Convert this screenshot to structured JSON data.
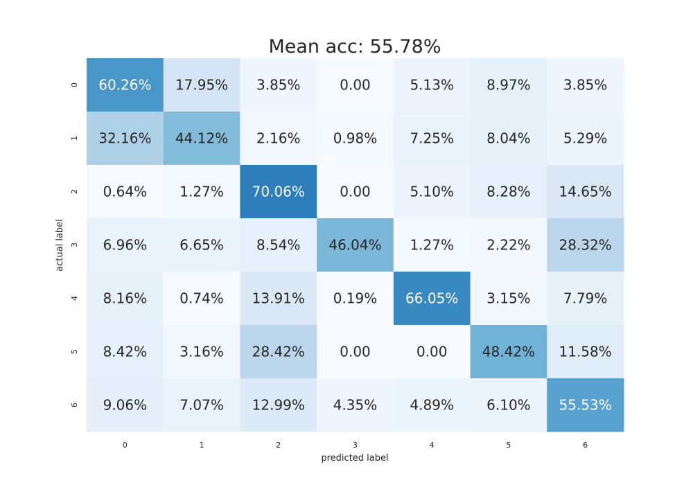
{
  "chart_data": {
    "type": "heatmap",
    "title": "Mean acc: 55.78%",
    "xlabel": "predicted label",
    "ylabel": "actual label",
    "x_categories": [
      "0",
      "1",
      "2",
      "3",
      "4",
      "5",
      "6"
    ],
    "y_categories": [
      "0",
      "1",
      "2",
      "3",
      "4",
      "5",
      "6"
    ],
    "values": [
      [
        60.26,
        17.95,
        3.85,
        0.0,
        5.13,
        8.97,
        3.85
      ],
      [
        32.16,
        44.12,
        2.16,
        0.98,
        7.25,
        8.04,
        5.29
      ],
      [
        0.64,
        1.27,
        70.06,
        0.0,
        5.1,
        8.28,
        14.65
      ],
      [
        6.96,
        6.65,
        8.54,
        46.04,
        1.27,
        2.22,
        28.32
      ],
      [
        8.16,
        0.74,
        13.91,
        0.19,
        66.05,
        3.15,
        7.79
      ],
      [
        8.42,
        3.16,
        28.42,
        0.0,
        0.0,
        48.42,
        11.58
      ],
      [
        9.06,
        7.07,
        12.99,
        4.35,
        4.89,
        6.1,
        55.53
      ]
    ],
    "cell_labels": [
      [
        "60.26%",
        "17.95%",
        "3.85%",
        "0.00",
        "5.13%",
        "8.97%",
        "3.85%"
      ],
      [
        "32.16%",
        "44.12%",
        "2.16%",
        "0.98%",
        "7.25%",
        "8.04%",
        "5.29%"
      ],
      [
        "0.64%",
        "1.27%",
        "70.06%",
        "0.00",
        "5.10%",
        "8.28%",
        "14.65%"
      ],
      [
        "6.96%",
        "6.65%",
        "8.54%",
        "46.04%",
        "1.27%",
        "2.22%",
        "28.32%"
      ],
      [
        "8.16%",
        "0.74%",
        "13.91%",
        "0.19%",
        "66.05%",
        "3.15%",
        "7.79%"
      ],
      [
        "8.42%",
        "3.16%",
        "28.42%",
        "0.00",
        "0.00",
        "48.42%",
        "11.58%"
      ],
      [
        "9.06%",
        "7.07%",
        "12.99%",
        "4.35%",
        "4.89%",
        "6.10%",
        "55.53%"
      ]
    ],
    "color_scale": "Blues",
    "vmin": 0,
    "vmax": 100,
    "grid": false,
    "colorbar": false
  }
}
